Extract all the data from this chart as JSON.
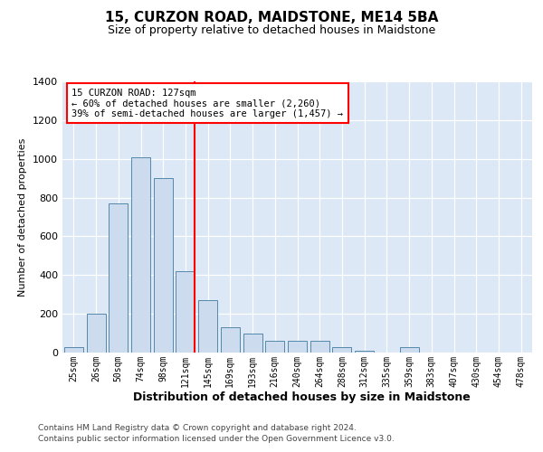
{
  "title": "15, CURZON ROAD, MAIDSTONE, ME14 5BA",
  "subtitle": "Size of property relative to detached houses in Maidstone",
  "xlabel": "Distribution of detached houses by size in Maidstone",
  "ylabel": "Number of detached properties",
  "bar_color": "#ccdcee",
  "bar_edge_color": "#5588aa",
  "background_color": "#dce8f5",
  "property_line_value": 127,
  "property_line_bin_index": 5,
  "annotation_line1": "15 CURZON ROAD: 127sqm",
  "annotation_line2": "← 60% of detached houses are smaller (2,260)",
  "annotation_line3": "39% of semi-detached houses are larger (1,457) →",
  "footer1": "Contains HM Land Registry data © Crown copyright and database right 2024.",
  "footer2": "Contains public sector information licensed under the Open Government Licence v3.0.",
  "categories": [
    "25sqm",
    "26sqm",
    "50sqm",
    "74sqm",
    "98sqm",
    "121sqm",
    "145sqm",
    "169sqm",
    "193sqm",
    "216sqm",
    "240sqm",
    "264sqm",
    "288sqm",
    "312sqm",
    "335sqm",
    "359sqm",
    "383sqm",
    "407sqm",
    "430sqm",
    "454sqm",
    "478sqm"
  ],
  "values": [
    30,
    200,
    770,
    1010,
    900,
    420,
    270,
    130,
    100,
    60,
    60,
    60,
    30,
    10,
    0,
    30,
    0,
    0,
    0,
    0,
    0
  ],
  "ylim": [
    0,
    1400
  ],
  "yticks": [
    0,
    200,
    400,
    600,
    800,
    1000,
    1200,
    1400
  ],
  "title_fontsize": 11,
  "subtitle_fontsize": 9,
  "ylabel_fontsize": 8,
  "xlabel_fontsize": 9,
  "tick_fontsize": 7,
  "footer_fontsize": 6.5
}
